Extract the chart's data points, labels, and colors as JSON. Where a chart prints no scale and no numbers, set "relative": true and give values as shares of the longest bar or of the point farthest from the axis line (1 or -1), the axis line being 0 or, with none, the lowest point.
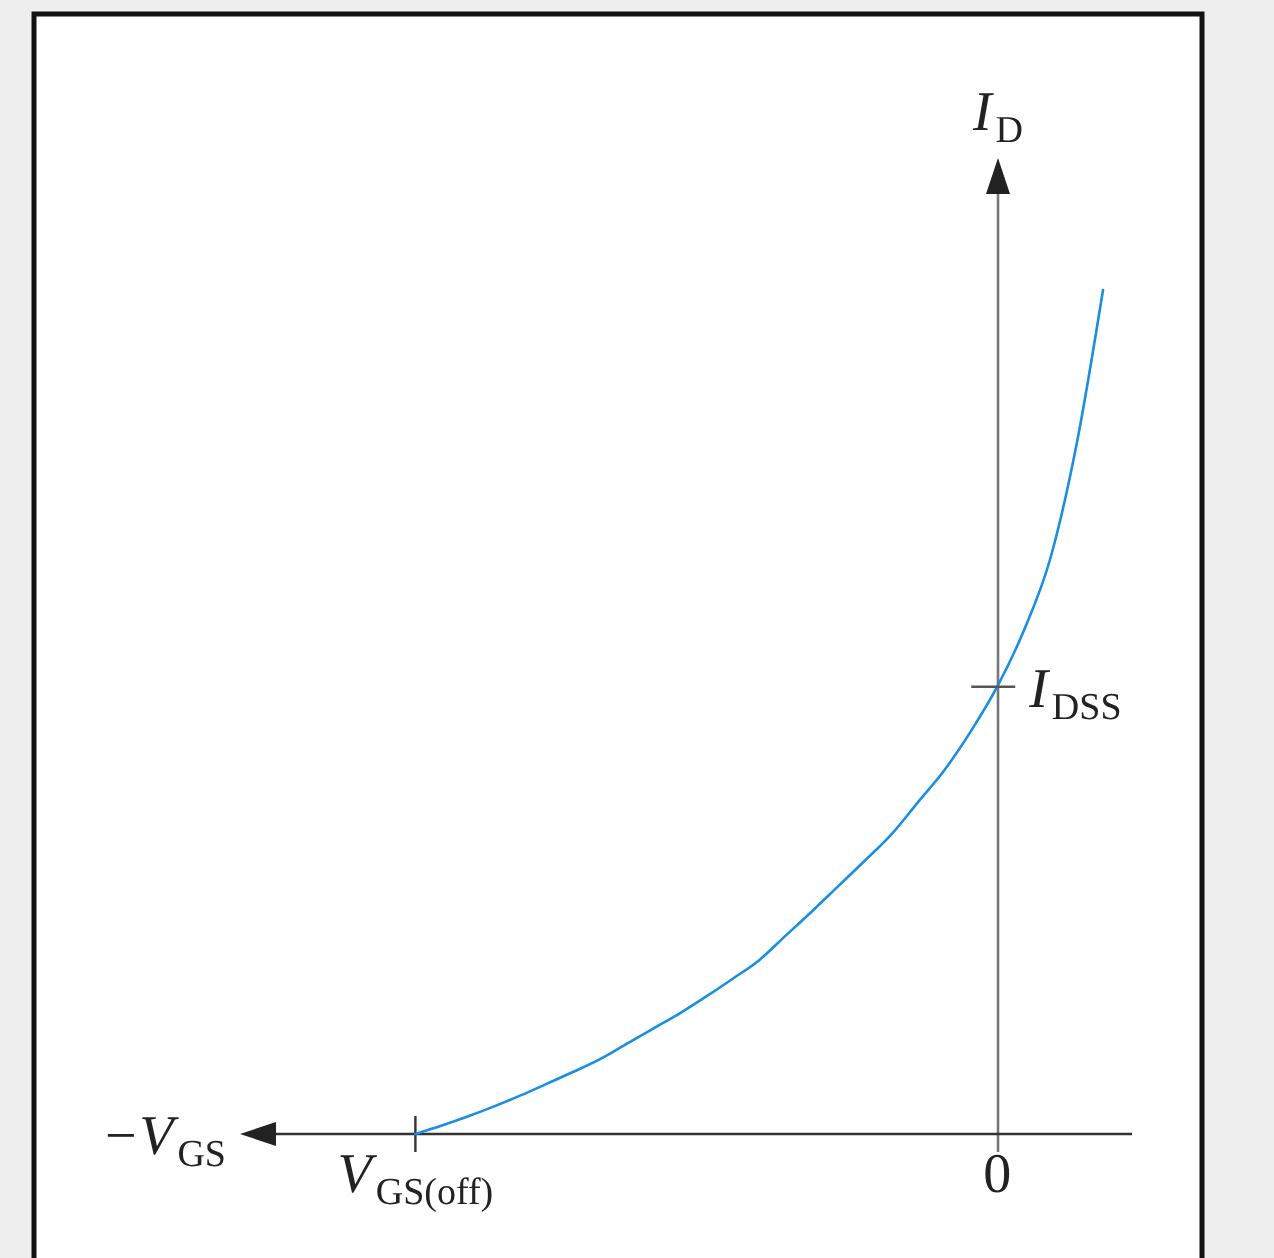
{
  "chart_data": {
    "type": "line",
    "xlabel": "−V$_{GS}$",
    "ylabel": "I$_{D}$",
    "relative": true,
    "categories": [
      "V$_{GS(off)}$",
      null,
      null,
      null,
      null,
      null,
      null,
      null,
      null,
      null,
      null,
      null,
      null,
      null,
      null,
      null,
      null,
      null,
      null,
      null,
      null,
      null,
      "0",
      null,
      null,
      null,
      null
    ],
    "series": [
      {
        "color": "#1a8ee0",
        "values": [
          0,
          0.01,
          0.021,
          0.033,
          0.046,
          0.06,
          0.074,
          0.089,
          0.107,
          0.125,
          0.143,
          0.163,
          0.184,
          0.206,
          0.235,
          0.264,
          0.294,
          0.324,
          0.355,
          0.393,
          0.431,
          0.477,
          0.53,
          0.596,
          0.681,
          0.817,
          1
        ]
      }
    ],
    "annotations": [
      {
        "text": "I$_{DSS}$",
        "x": "0",
        "y": 0.53
      }
    ]
  }
}
